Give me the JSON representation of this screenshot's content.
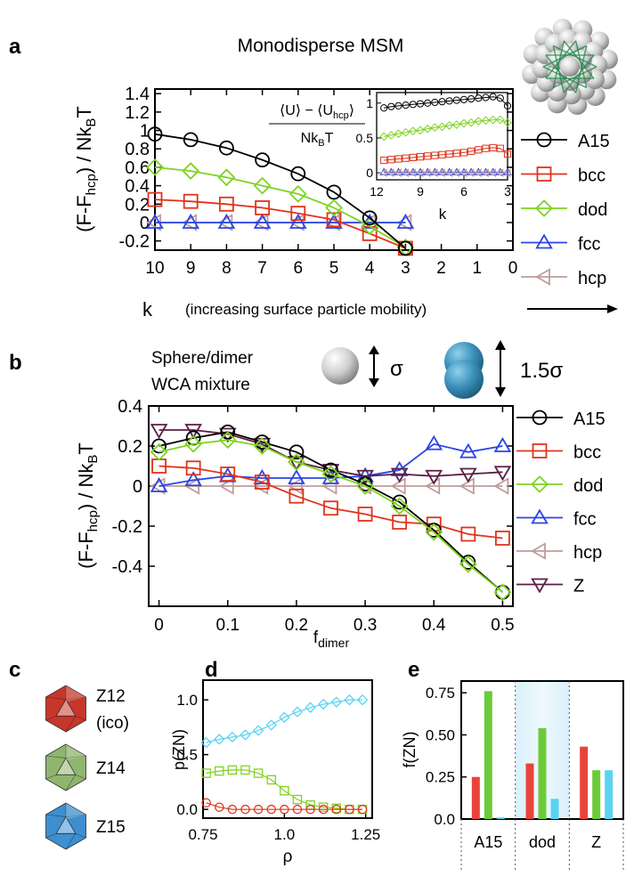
{
  "title": "Monodisperse MSM",
  "panel_labels": [
    "a",
    "b",
    "c",
    "d",
    "e"
  ],
  "species": [
    {
      "key": "A15",
      "color": "#000000",
      "marker": "circle"
    },
    {
      "key": "bcc",
      "color": "#e0341c",
      "marker": "square"
    },
    {
      "key": "dod",
      "color": "#7ed321",
      "marker": "diamond"
    },
    {
      "key": "fcc",
      "color": "#2a46e8",
      "marker": "triangle-up"
    },
    {
      "key": "hcp",
      "color": "#c09b9b",
      "marker": "triangle-left"
    },
    {
      "key": "Z",
      "color": "#5a1f45",
      "marker": "triangle-down"
    }
  ],
  "k_axis": {
    "label": "k",
    "note": "(increasing surface particle mobility)"
  },
  "panel_b": {
    "mixture_label_1": "Sphere/dimer",
    "mixture_label_2": "WCA mixture",
    "sphere_size": "σ",
    "dimer_size": "1.5σ"
  },
  "inset": {
    "label_top": "⟨U⟩ − ⟨U_hcp⟩",
    "label_bottom": "Nk_B T",
    "xlabel": "k"
  },
  "panel_c": {
    "items": [
      {
        "label": "Z12",
        "sub": "(ico)",
        "color": "#c8362a"
      },
      {
        "label": "Z14",
        "sub": "",
        "color": "#8fb56e"
      },
      {
        "label": "Z15",
        "sub": "",
        "color": "#3d8fd0"
      }
    ]
  },
  "chart_data": [
    {
      "id": "a",
      "type": "line",
      "title": "Monodisperse MSM",
      "xlabel": "k (increasing surface particle mobility)",
      "ylabel": "(F-F_hcp) / Nk_B T",
      "xlim": [
        10,
        0
      ],
      "ylim": [
        -0.3,
        1.45
      ],
      "xticks": [
        10,
        9,
        8,
        7,
        6,
        5,
        4,
        3,
        2,
        1,
        0
      ],
      "yticks": [
        "1.4",
        "1.2",
        "1",
        "0.8",
        "0.6",
        "0.4",
        "0.2",
        "0",
        "-0.2"
      ],
      "ytick_values": [
        1.4,
        1.2,
        1.0,
        0.8,
        0.6,
        0.4,
        0.2,
        0.0,
        -0.2
      ],
      "x": [
        10,
        9,
        8,
        7,
        6,
        5,
        4,
        3
      ],
      "series": [
        {
          "name": "A15",
          "values": [
            0.96,
            0.9,
            0.81,
            0.68,
            0.53,
            0.33,
            0.05,
            -0.28
          ]
        },
        {
          "name": "bcc",
          "values": [
            0.25,
            0.23,
            0.2,
            0.16,
            0.1,
            0.03,
            -0.12,
            -0.28
          ]
        },
        {
          "name": "dod",
          "values": [
            0.6,
            0.56,
            0.49,
            0.4,
            0.31,
            0.16,
            -0.04,
            -0.27
          ]
        },
        {
          "name": "fcc",
          "values": [
            0.0,
            0.0,
            0.0,
            0.0,
            0.0,
            0.0,
            0.0,
            0.0
          ]
        },
        {
          "name": "hcp",
          "values": [
            0.0,
            0.0,
            0.0,
            0.0,
            0.0,
            0.0,
            0.0,
            0.0
          ]
        }
      ]
    },
    {
      "id": "a-inset",
      "type": "line",
      "title": "⟨U⟩ − ⟨U_hcp⟩ / Nk_B T",
      "xlabel": "k",
      "ylabel": "",
      "xlim": [
        12,
        3
      ],
      "ylim": [
        -0.1,
        1.15
      ],
      "xticks": [
        12,
        9,
        6,
        3
      ],
      "yticks": [
        "1",
        "0.5",
        "0"
      ],
      "ytick_values": [
        1,
        0.5,
        0
      ],
      "x": [
        11.5,
        11,
        10.5,
        10,
        9.5,
        9,
        8.5,
        8,
        7.5,
        7,
        6.5,
        6,
        5.5,
        5,
        4.5,
        4,
        3.5,
        3
      ],
      "series": [
        {
          "name": "A15",
          "values": [
            0.93,
            0.95,
            0.96,
            0.97,
            0.98,
            0.99,
            1.0,
            1.01,
            1.02,
            1.03,
            1.04,
            1.05,
            1.06,
            1.07,
            1.08,
            1.09,
            1.07,
            0.96
          ]
        },
        {
          "name": "bcc",
          "values": [
            0.18,
            0.19,
            0.2,
            0.21,
            0.22,
            0.23,
            0.24,
            0.25,
            0.26,
            0.27,
            0.28,
            0.29,
            0.31,
            0.33,
            0.35,
            0.36,
            0.35,
            0.27
          ]
        },
        {
          "name": "dod",
          "values": [
            0.52,
            0.54,
            0.56,
            0.58,
            0.6,
            0.61,
            0.63,
            0.65,
            0.66,
            0.68,
            0.69,
            0.71,
            0.72,
            0.74,
            0.75,
            0.76,
            0.76,
            0.72
          ]
        },
        {
          "name": "fcc",
          "values": [
            0.01,
            0.01,
            0.01,
            0.01,
            0.01,
            0.01,
            0.01,
            0.01,
            0.01,
            0.01,
            0.01,
            0.01,
            0.01,
            0.01,
            0.01,
            0.01,
            0.01,
            0.01
          ]
        },
        {
          "name": "hcp",
          "values": [
            0.0,
            0.0,
            0.0,
            0.0,
            0.0,
            0.0,
            0.0,
            0.0,
            0.0,
            0.0,
            0.0,
            0.0,
            0.0,
            0.0,
            0.0,
            0.0,
            0.0,
            0.0
          ]
        }
      ]
    },
    {
      "id": "b",
      "type": "line",
      "title": "Sphere/dimer WCA mixture",
      "xlabel": "f_dimer",
      "ylabel": "(F-F_hcp) / Nk_B T",
      "xlim": [
        -0.015,
        0.515
      ],
      "ylim": [
        -0.6,
        0.4
      ],
      "xticks": [
        "0",
        "0.1",
        "0.2",
        "0.3",
        "0.4",
        "0.5"
      ],
      "xtick_values": [
        0,
        0.1,
        0.2,
        0.3,
        0.4,
        0.5
      ],
      "yticks": [
        "0.4",
        "0.2",
        "0",
        "-0.2",
        "-0.4"
      ],
      "ytick_values": [
        0.4,
        0.2,
        0.0,
        -0.2,
        -0.4
      ],
      "x": [
        0,
        0.05,
        0.1,
        0.15,
        0.2,
        0.25,
        0.3,
        0.35,
        0.4,
        0.45,
        0.5
      ],
      "series": [
        {
          "name": "A15",
          "values": [
            0.2,
            0.24,
            0.27,
            0.22,
            0.17,
            0.08,
            0.01,
            -0.08,
            -0.22,
            -0.38,
            -0.53
          ]
        },
        {
          "name": "bcc",
          "values": [
            0.1,
            0.09,
            0.06,
            0.02,
            -0.05,
            -0.11,
            -0.14,
            -0.18,
            -0.19,
            -0.24,
            -0.26
          ]
        },
        {
          "name": "dod",
          "values": [
            0.17,
            0.21,
            0.23,
            0.2,
            0.12,
            0.06,
            0.0,
            -0.1,
            -0.23,
            -0.39,
            -0.53
          ]
        },
        {
          "name": "fcc",
          "values": [
            0.0,
            0.03,
            0.05,
            0.04,
            0.04,
            0.04,
            0.05,
            0.08,
            0.21,
            0.17,
            0.2
          ]
        },
        {
          "name": "hcp",
          "values": [
            0.0,
            0.0,
            0.0,
            0.0,
            0.0,
            0.0,
            0.0,
            0.0,
            0.0,
            0.0,
            0.0
          ]
        },
        {
          "name": "Z",
          "values": [
            0.28,
            0.28,
            0.26,
            0.21,
            0.12,
            0.08,
            0.05,
            0.06,
            0.05,
            0.06,
            0.07
          ]
        }
      ]
    },
    {
      "id": "d",
      "type": "line",
      "xlabel": "ρ",
      "ylabel": "p(ZN)",
      "xlim": [
        0.75,
        1.27
      ],
      "ylim": [
        -0.08,
        1.18
      ],
      "xticks": [
        "0.75",
        "1.0",
        "1.25"
      ],
      "xtick_values": [
        0.75,
        1.0,
        1.25
      ],
      "yticks": [
        "1.0",
        "0.5",
        "0.0"
      ],
      "ytick_values": [
        1.0,
        0.5,
        0.0
      ],
      "x": [
        0.76,
        0.8,
        0.84,
        0.88,
        0.92,
        0.96,
        1.0,
        1.04,
        1.08,
        1.12,
        1.16,
        1.2,
        1.24
      ],
      "series": [
        {
          "name": "Z15",
          "color": "#5ad3f2",
          "values": [
            0.61,
            0.64,
            0.66,
            0.68,
            0.72,
            0.77,
            0.84,
            0.89,
            0.93,
            0.96,
            0.98,
            1.0,
            1.0
          ]
        },
        {
          "name": "Z14",
          "color": "#7ed321",
          "values": [
            0.33,
            0.35,
            0.36,
            0.36,
            0.33,
            0.27,
            0.17,
            0.09,
            0.04,
            0.02,
            0.01,
            0.0,
            0.0
          ]
        },
        {
          "name": "Z12",
          "color": "#e0341c",
          "values": [
            0.06,
            0.02,
            0.0,
            0.0,
            0.0,
            0.0,
            0.0,
            0.0,
            0.0,
            0.0,
            0.0,
            0.0,
            0.0
          ]
        }
      ]
    },
    {
      "id": "e",
      "type": "bar",
      "xlabel": "",
      "ylabel": "f(ZN)",
      "ylim": [
        0,
        0.82
      ],
      "yticks": [
        "0.75",
        "0.50",
        "0.25",
        "0.0"
      ],
      "ytick_values": [
        0.75,
        0.5,
        0.25,
        0.0
      ],
      "categories": [
        "A15",
        "dod",
        "Z"
      ],
      "series": [
        {
          "name": "Z12",
          "color": "#e8433a",
          "values": [
            0.25,
            0.33,
            0.43
          ]
        },
        {
          "name": "Z14",
          "color": "#6ccb3a",
          "values": [
            0.76,
            0.54,
            0.29
          ]
        },
        {
          "name": "Z15",
          "color": "#5ad3f2",
          "values": [
            0.01,
            0.12,
            0.29
          ]
        }
      ],
      "highlight_category": "dod"
    }
  ]
}
